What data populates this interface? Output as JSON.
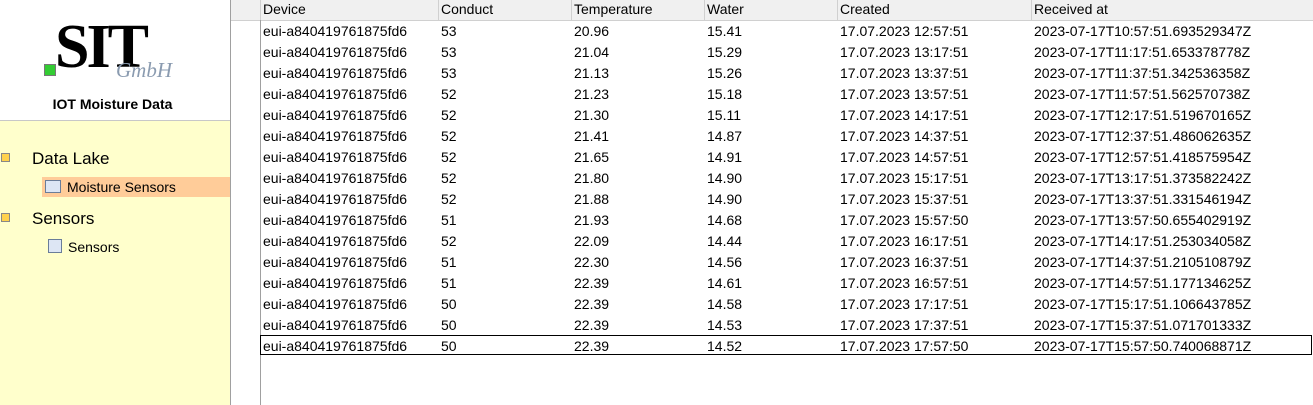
{
  "sidebar": {
    "logo": "SIT",
    "logo_sub": "GmbH",
    "caption": "IOT Moisture Data",
    "tree": [
      {
        "label": "Data Lake",
        "children": [
          "Moisture Sensors"
        ]
      },
      {
        "label": "Sensors",
        "children": [
          "Sensors"
        ]
      }
    ]
  },
  "table": {
    "columns": [
      "Device",
      "Conduct",
      "Temperature",
      "Water",
      "Created",
      "Received at"
    ],
    "rows": [
      [
        "eui-a840419761875fd6",
        "53",
        "20.96",
        "15.41",
        "17.07.2023 12:57:51",
        "2023-07-17T10:57:51.693529347Z"
      ],
      [
        "eui-a840419761875fd6",
        "53",
        "21.04",
        "15.29",
        "17.07.2023 13:17:51",
        "2023-07-17T11:17:51.653378778Z"
      ],
      [
        "eui-a840419761875fd6",
        "53",
        "21.13",
        "15.26",
        "17.07.2023 13:37:51",
        "2023-07-17T11:37:51.342536358Z"
      ],
      [
        "eui-a840419761875fd6",
        "52",
        "21.23",
        "15.18",
        "17.07.2023 13:57:51",
        "2023-07-17T11:57:51.562570738Z"
      ],
      [
        "eui-a840419761875fd6",
        "52",
        "21.30",
        "15.11",
        "17.07.2023 14:17:51",
        "2023-07-17T12:17:51.519670165Z"
      ],
      [
        "eui-a840419761875fd6",
        "52",
        "21.41",
        "14.87",
        "17.07.2023 14:37:51",
        "2023-07-17T12:37:51.486062635Z"
      ],
      [
        "eui-a840419761875fd6",
        "52",
        "21.65",
        "14.91",
        "17.07.2023 14:57:51",
        "2023-07-17T12:57:51.418575954Z"
      ],
      [
        "eui-a840419761875fd6",
        "52",
        "21.80",
        "14.90",
        "17.07.2023 15:17:51",
        "2023-07-17T13:17:51.373582242Z"
      ],
      [
        "eui-a840419761875fd6",
        "52",
        "21.88",
        "14.90",
        "17.07.2023 15:37:51",
        "2023-07-17T13:37:51.331546194Z"
      ],
      [
        "eui-a840419761875fd6",
        "51",
        "21.93",
        "14.68",
        "17.07.2023 15:57:50",
        "2023-07-17T13:57:50.655402919Z"
      ],
      [
        "eui-a840419761875fd6",
        "52",
        "22.09",
        "14.44",
        "17.07.2023 16:17:51",
        "2023-07-17T14:17:51.253034058Z"
      ],
      [
        "eui-a840419761875fd6",
        "51",
        "22.30",
        "14.56",
        "17.07.2023 16:37:51",
        "2023-07-17T14:37:51.210510879Z"
      ],
      [
        "eui-a840419761875fd6",
        "51",
        "22.39",
        "14.61",
        "17.07.2023 16:57:51",
        "2023-07-17T14:57:51.177134625Z"
      ],
      [
        "eui-a840419761875fd6",
        "50",
        "22.39",
        "14.58",
        "17.07.2023 17:17:51",
        "2023-07-17T15:17:51.106643785Z"
      ],
      [
        "eui-a840419761875fd6",
        "50",
        "22.39",
        "14.53",
        "17.07.2023 17:37:51",
        "2023-07-17T15:37:51.071701333Z"
      ],
      [
        "eui-a840419761875fd6",
        "50",
        "22.39",
        "14.52",
        "17.07.2023 17:57:50",
        "2023-07-17T15:57:50.740068871Z"
      ]
    ]
  }
}
